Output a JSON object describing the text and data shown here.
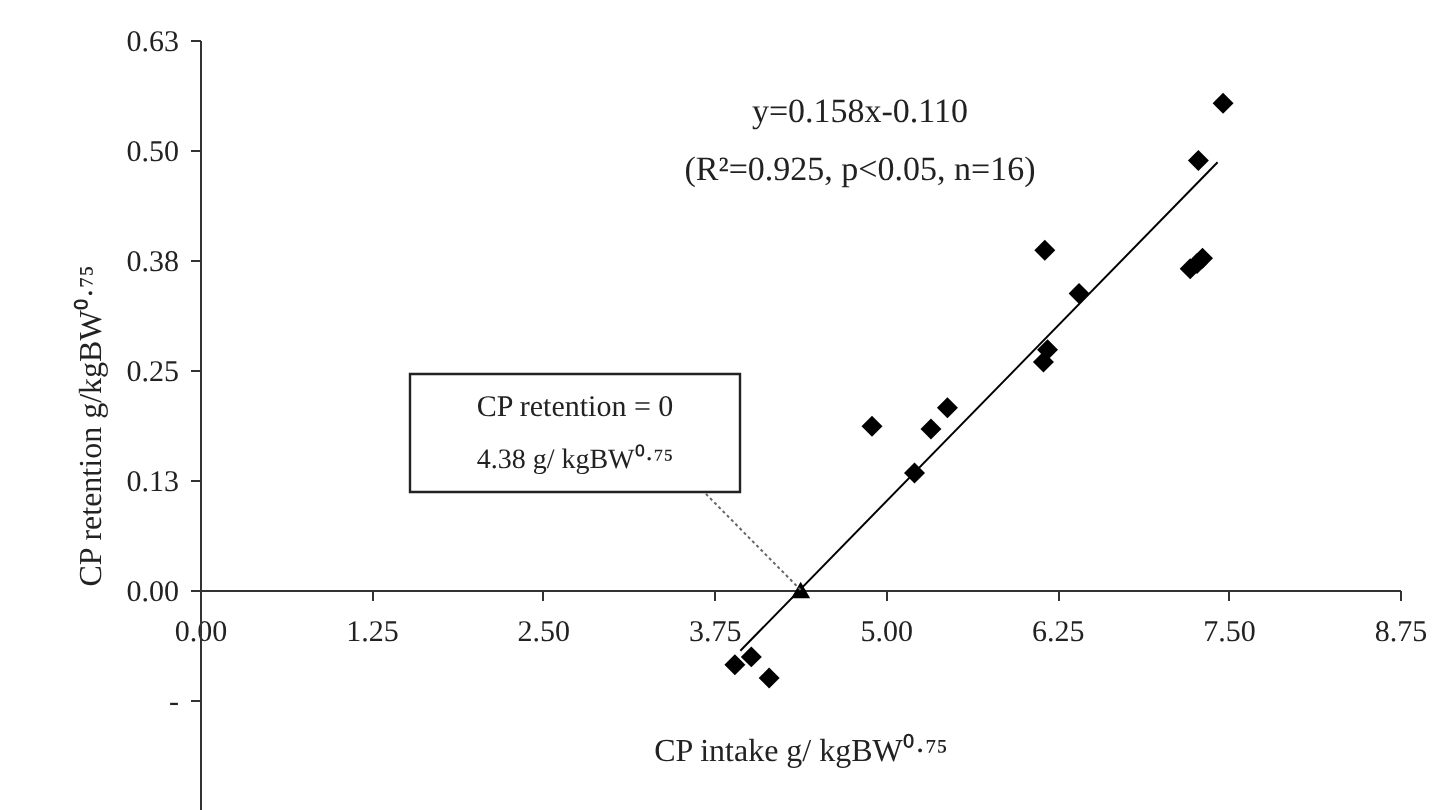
{
  "chart_data": {
    "type": "scatter",
    "xlabel": "CP intake g/ kgBW⁰·⁷⁵",
    "ylabel": "CP retention g/kgBW⁰·⁷⁵",
    "xlim": [
      0,
      8.75
    ],
    "xticks": [
      {
        "value": 0,
        "label": "0.00"
      },
      1.25,
      {
        "value": 2.5,
        "label": "2.50"
      },
      3.75,
      {
        "value": 5,
        "label": "5.00"
      },
      6.25,
      {
        "value": 7.5,
        "label": "7.50"
      },
      8.75
    ],
    "ylim": [
      -0.25,
      0.625
    ],
    "yticks": [
      {
        "value": -0.125,
        "label": "-"
      },
      {
        "value": 0,
        "label": "0.00"
      },
      {
        "value": 0.125,
        "label": "0.13"
      },
      {
        "value": 0.25,
        "label": "0.25"
      },
      {
        "value": 0.375,
        "label": "0.38"
      },
      {
        "value": 0.5,
        "label": "0.50"
      },
      {
        "value": 0.625,
        "label": "0.63"
      }
    ],
    "series": [
      {
        "marker": "diamond",
        "color": "#000000",
        "x": [
          7.46,
          7.28,
          6.16,
          6.41,
          7.31,
          7.27,
          7.22,
          6.18,
          6.15,
          5.45,
          5.33,
          4.9,
          5.21,
          3.9,
          4.02,
          4.15
        ],
        "values": [
          0.553,
          0.488,
          0.386,
          0.337,
          0.377,
          0.371,
          0.365,
          0.273,
          0.259,
          0.207,
          0.183,
          0.186,
          0.133,
          -0.085,
          -0.076,
          -0.1
        ]
      },
      {
        "type": "line",
        "line_style": "solid",
        "color": "#000000",
        "x": [
          3.94,
          7.42
        ],
        "values": [
          -0.069,
          0.486
        ]
      },
      {
        "type": "scatter",
        "marker": "triangle",
        "color": "#000000",
        "x": [
          4.38
        ],
        "values": [
          0
        ]
      }
    ],
    "annotations": [
      "y=0.158x-0.110",
      "(R²=0.925, p<0.05, n=16)",
      "CP retention = 0",
      {
        "text": "4.38 g/ kgBW⁰·⁷⁵",
        "x": 4.38,
        "y": 0
      }
    ]
  }
}
